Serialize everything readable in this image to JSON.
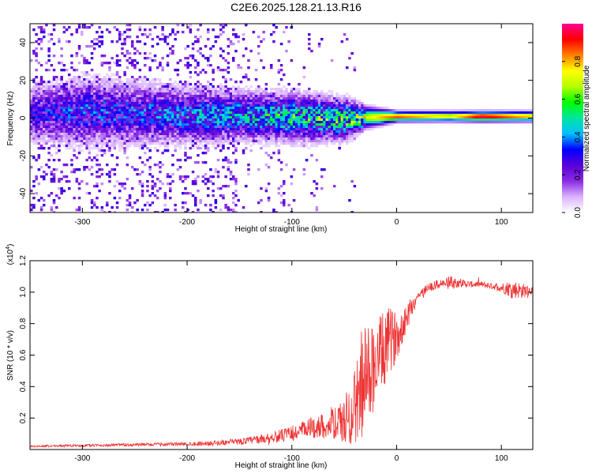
{
  "title": "C2E6.2025.128.21.13.R16",
  "colors": {
    "snr_line": "#ee3333",
    "colormap": [
      "#ffffff",
      "#d9b3ff",
      "#8a2be2",
      "#5a00d9",
      "#0000ff",
      "#00bfff",
      "#00e5a0",
      "#00ff00",
      "#b5ff00",
      "#ffff00",
      "#ff8000",
      "#ff0000",
      "#ff0090"
    ]
  },
  "chart_data": [
    {
      "type": "heatmap",
      "title": "C2E6.2025.128.21.13.R16",
      "xlabel": "Height of straight line (km)",
      "ylabel": "Frequency (Hz)",
      "xlim": [
        -350,
        130
      ],
      "ylim": [
        -50,
        50
      ],
      "xticks": [
        -300,
        -200,
        -100,
        0,
        100
      ],
      "yticks": [
        -40,
        -20,
        0,
        20,
        40
      ],
      "grid": false,
      "colorbar": {
        "label": "Normalized spectral amplitude",
        "range": [
          0,
          1
        ],
        "ticks": [
          0.0,
          0.2,
          0.4,
          0.6,
          0.8
        ]
      },
      "description_of_content": "Band centred near 0 Hz: broad noisy purple speckle for heights below about -150 km; concentrated blue/green band between -150 and -30 km; narrow high-amplitude (yellow/red) line at about 1-2 Hz from -30 km to 130 km",
      "band": [
        {
          "x": -350,
          "center_hz": 3,
          "halfwidth_hz": 8,
          "peak": 0.25
        },
        {
          "x": -300,
          "center_hz": 4,
          "halfwidth_hz": 10,
          "peak": 0.3
        },
        {
          "x": -250,
          "center_hz": 3,
          "halfwidth_hz": 9,
          "peak": 0.3
        },
        {
          "x": -200,
          "center_hz": 2,
          "halfwidth_hz": 8,
          "peak": 0.35
        },
        {
          "x": -150,
          "center_hz": 2,
          "halfwidth_hz": 7,
          "peak": 0.4
        },
        {
          "x": -100,
          "center_hz": 1,
          "halfwidth_hz": 7,
          "peak": 0.45
        },
        {
          "x": -50,
          "center_hz": 0,
          "halfwidth_hz": 6,
          "peak": 0.5
        },
        {
          "x": -30,
          "center_hz": 1,
          "halfwidth_hz": 3,
          "peak": 0.7
        },
        {
          "x": 0,
          "center_hz": 1.5,
          "halfwidth_hz": 1.5,
          "peak": 0.9
        },
        {
          "x": 50,
          "center_hz": 1.5,
          "halfwidth_hz": 1.5,
          "peak": 0.75
        },
        {
          "x": 80,
          "center_hz": 1.5,
          "halfwidth_hz": 1.5,
          "peak": 1.0
        },
        {
          "x": 130,
          "center_hz": 1.5,
          "halfwidth_hz": 1.5,
          "peak": 0.8
        }
      ]
    },
    {
      "type": "line",
      "xlabel": "Height of straight line (km)",
      "ylabel": "SNR (10 * v/v)",
      "y_multiplier": "(x10^4)",
      "xlim": [
        -350,
        130
      ],
      "ylim": [
        0,
        1.2
      ],
      "xticks": [
        -300,
        -200,
        -100,
        0,
        100
      ],
      "yticks": [
        0.2,
        0.4,
        0.6,
        0.8,
        1.0,
        1.2
      ],
      "grid": false,
      "series": [
        {
          "x": [
            -350,
            -300,
            -250,
            -200,
            -175,
            -150,
            -125,
            -100,
            -90,
            -80,
            -70,
            -60,
            -50,
            -45,
            -40,
            -35,
            -30,
            -25,
            -20,
            -15,
            -10,
            -5,
            0,
            5,
            10,
            15,
            20,
            25,
            30,
            40,
            50,
            60,
            70,
            80,
            90,
            100,
            110,
            120,
            130
          ],
          "y": [
            0.02,
            0.025,
            0.03,
            0.035,
            0.04,
            0.05,
            0.07,
            0.1,
            0.12,
            0.14,
            0.15,
            0.16,
            0.18,
            0.22,
            0.28,
            0.35,
            0.45,
            0.5,
            0.55,
            0.6,
            0.65,
            0.7,
            0.72,
            0.78,
            0.85,
            0.92,
            0.97,
            1.0,
            1.03,
            1.05,
            1.06,
            1.06,
            1.05,
            1.05,
            1.04,
            1.03,
            1.02,
            1.01,
            1.01
          ],
          "noise_amplitude": [
            0.005,
            0.008,
            0.01,
            0.012,
            0.015,
            0.02,
            0.03,
            0.05,
            0.06,
            0.07,
            0.08,
            0.1,
            0.15,
            0.2,
            0.25,
            0.3,
            0.35,
            0.3,
            0.3,
            0.25,
            0.25,
            0.2,
            0.15,
            0.12,
            0.1,
            0.06,
            0.04,
            0.03,
            0.03,
            0.03,
            0.04,
            0.03,
            0.02,
            0.02,
            0.02,
            0.03,
            0.06,
            0.05,
            0.02
          ]
        }
      ]
    }
  ]
}
